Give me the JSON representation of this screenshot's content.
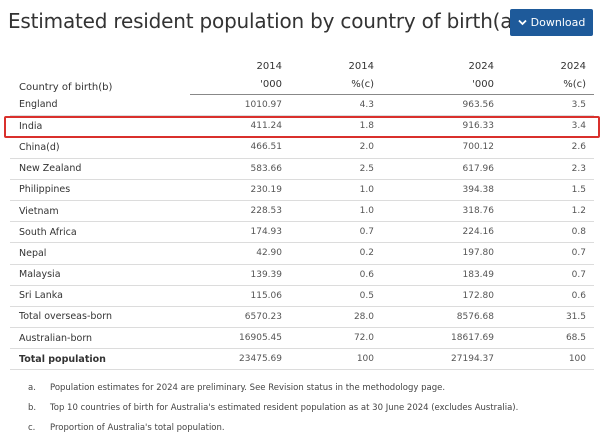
{
  "page": {
    "title": "Estimated resident population by country of birth(a)(b)",
    "download_label": "Download",
    "download_icon": "chevron-down-icon",
    "highlight_color": "#d9302c",
    "accent_color": "#1e5a9a"
  },
  "table": {
    "col_label_header": "Country of birth(b)",
    "header_row1": [
      "2014",
      "2014",
      "2024",
      "2024"
    ],
    "header_row2": [
      "'000",
      "%(c)",
      "'000",
      "%(c)"
    ],
    "rows": [
      {
        "label": "England",
        "v": [
          "1010.97",
          "4.3",
          "963.56",
          "3.5"
        ]
      },
      {
        "label": "India",
        "v": [
          "411.24",
          "1.8",
          "916.33",
          "3.4"
        ]
      },
      {
        "label": "China(d)",
        "v": [
          "466.51",
          "2.0",
          "700.12",
          "2.6"
        ]
      },
      {
        "label": "New Zealand",
        "v": [
          "583.66",
          "2.5",
          "617.96",
          "2.3"
        ]
      },
      {
        "label": "Philippines",
        "v": [
          "230.19",
          "1.0",
          "394.38",
          "1.5"
        ]
      },
      {
        "label": "Vietnam",
        "v": [
          "228.53",
          "1.0",
          "318.76",
          "1.2"
        ]
      },
      {
        "label": "South Africa",
        "v": [
          "174.93",
          "0.7",
          "224.16",
          "0.8"
        ]
      },
      {
        "label": "Nepal",
        "v": [
          "42.90",
          "0.2",
          "197.80",
          "0.7"
        ]
      },
      {
        "label": "Malaysia",
        "v": [
          "139.39",
          "0.6",
          "183.49",
          "0.7"
        ]
      },
      {
        "label": "Sri Lanka",
        "v": [
          "115.06",
          "0.5",
          "172.80",
          "0.6"
        ]
      },
      {
        "label": "Total overseas-born",
        "v": [
          "6570.23",
          "28.0",
          "8576.68",
          "31.5"
        ]
      },
      {
        "label": "Australian-born",
        "v": [
          "16905.45",
          "72.0",
          "18617.69",
          "68.5"
        ]
      },
      {
        "label": "Total population",
        "v": [
          "23475.69",
          "100",
          "27194.37",
          "100"
        ]
      }
    ]
  },
  "notes": [
    {
      "marker": "a.",
      "text": "Population estimates for 2024 are preliminary. See Revision status in the methodology page."
    },
    {
      "marker": "b.",
      "text": "Top 10 countries of birth for Australia's estimated resident population as at 30 June 2024 (excludes Australia)."
    },
    {
      "marker": "c.",
      "text": "Proportion of Australia's total population."
    }
  ]
}
